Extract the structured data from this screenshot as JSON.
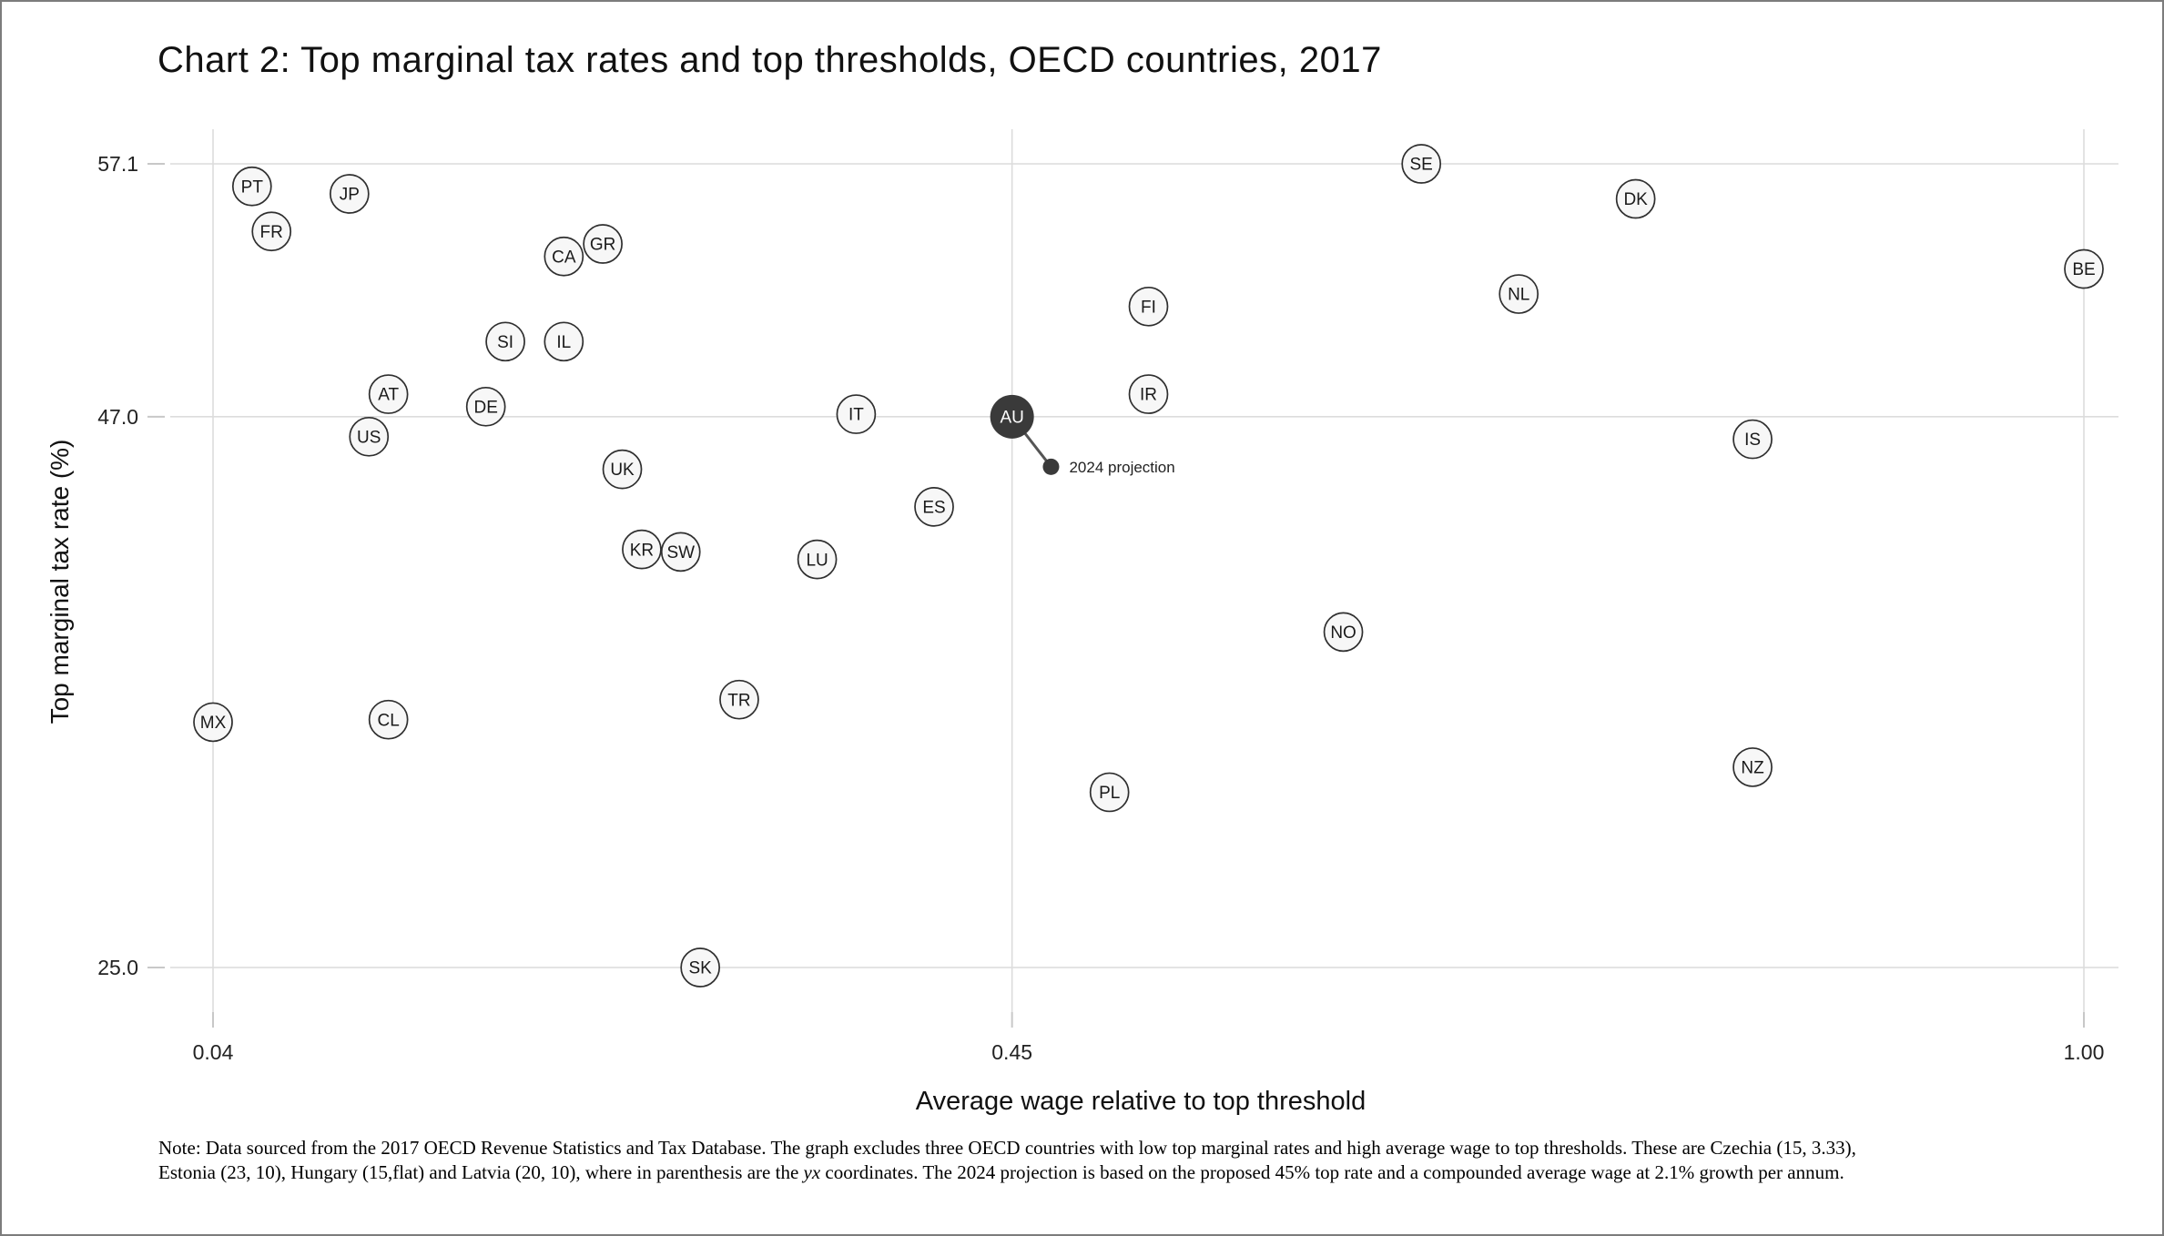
{
  "title": "Chart 2: Top marginal tax rates and top thresholds, OECD countries, 2017",
  "colors": {
    "background": "#ffffff",
    "frame_border": "#7c7c7c",
    "gridline": "#dcdcdc",
    "tick_mark": "#c8c8c8",
    "tick_text": "#222222",
    "circle_fill": "#f7f7f7",
    "circle_stroke": "#2f2f2f",
    "point_label": "#1a1a1a",
    "highlight_fill": "#3a3a3a",
    "highlight_text": "#ffffff",
    "connector": "#555555",
    "projection_dot": "#3a3a3a"
  },
  "chart_data": {
    "type": "scatter",
    "title": "Chart 2: Top marginal tax rates and top thresholds, OECD countries, 2017",
    "xlabel": "Average wage relative to top threshold",
    "ylabel": "Top marginal tax rate (%)",
    "x_ticks": [
      "0.04",
      "0.45",
      "1.00"
    ],
    "y_ticks": [
      "57.1",
      "47.0",
      "25.0"
    ],
    "x_range": [
      0.04,
      1.0
    ],
    "y_range": [
      25.0,
      57.1
    ],
    "grid": true,
    "legend": "none",
    "points": [
      {
        "code": "MX",
        "x": 0.04,
        "y": 34.8
      },
      {
        "code": "PT",
        "x": 0.06,
        "y": 56.2
      },
      {
        "code": "FR",
        "x": 0.07,
        "y": 54.4
      },
      {
        "code": "JP",
        "x": 0.11,
        "y": 55.9
      },
      {
        "code": "US",
        "x": 0.12,
        "y": 46.2
      },
      {
        "code": "AT",
        "x": 0.13,
        "y": 47.9
      },
      {
        "code": "CL",
        "x": 0.13,
        "y": 34.9
      },
      {
        "code": "DE",
        "x": 0.18,
        "y": 47.4
      },
      {
        "code": "SI",
        "x": 0.19,
        "y": 50.0
      },
      {
        "code": "CA",
        "x": 0.22,
        "y": 53.4
      },
      {
        "code": "IL",
        "x": 0.22,
        "y": 50.0
      },
      {
        "code": "GR",
        "x": 0.24,
        "y": 53.9
      },
      {
        "code": "UK",
        "x": 0.25,
        "y": 44.9
      },
      {
        "code": "KR",
        "x": 0.26,
        "y": 41.7
      },
      {
        "code": "SW",
        "x": 0.28,
        "y": 41.6
      },
      {
        "code": "SK",
        "x": 0.29,
        "y": 25.0
      },
      {
        "code": "TR",
        "x": 0.31,
        "y": 35.7
      },
      {
        "code": "LU",
        "x": 0.35,
        "y": 41.3
      },
      {
        "code": "IT",
        "x": 0.37,
        "y": 47.1
      },
      {
        "code": "ES",
        "x": 0.41,
        "y": 43.4
      },
      {
        "code": "PL",
        "x": 0.5,
        "y": 32.0
      },
      {
        "code": "FI",
        "x": 0.52,
        "y": 51.4
      },
      {
        "code": "IR",
        "x": 0.52,
        "y": 47.9
      },
      {
        "code": "NO",
        "x": 0.62,
        "y": 38.4
      },
      {
        "code": "SE",
        "x": 0.66,
        "y": 57.1
      },
      {
        "code": "NL",
        "x": 0.71,
        "y": 51.9
      },
      {
        "code": "DK",
        "x": 0.77,
        "y": 55.7
      },
      {
        "code": "IS",
        "x": 0.83,
        "y": 46.1
      },
      {
        "code": "NZ",
        "x": 0.83,
        "y": 33.0
      },
      {
        "code": "BE",
        "x": 1.0,
        "y": 52.9
      }
    ],
    "highlight": {
      "code": "AU",
      "x": 0.45,
      "y": 47.0
    },
    "projection": {
      "x": 0.47,
      "y": 45.0,
      "label": "2024 projection"
    }
  },
  "note": {
    "line1": "Note: Data sourced from the 2017 OECD Revenue Statistics and Tax Database. The graph excludes three OECD countries with low top marginal rates and high average wage to top thresholds. These are Czechia (15, 3.33),",
    "line2": [
      "Estonia (23, 10), Hungary (15,flat) and Latvia (20, 10), where in parenthesis are the ",
      "yx",
      " coordinates. The 2024 projection is based on the proposed 45% top rate and a compounded average wage at 2.1% growth per annum."
    ]
  }
}
